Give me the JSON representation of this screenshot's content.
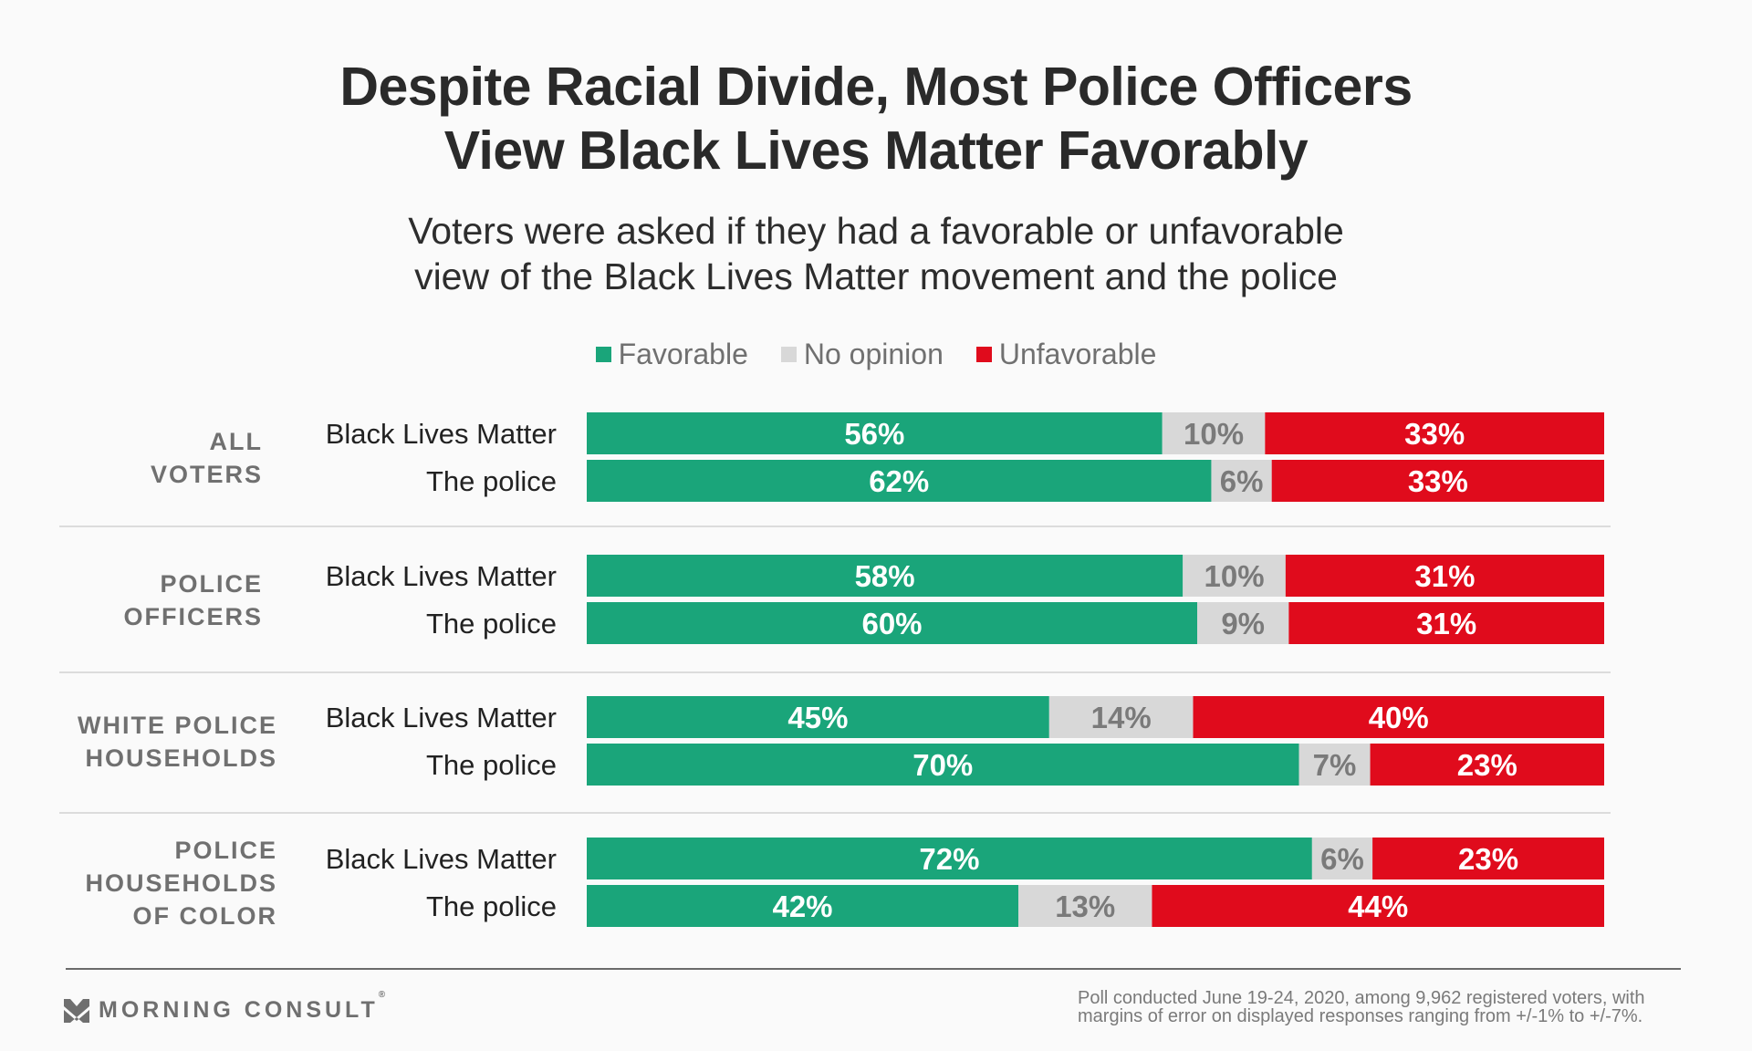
{
  "title_line1": "Despite Racial Divide, Most Police Officers",
  "title_line2": "View Black Lives Matter Favorably",
  "subtitle_line1": "Voters were asked if they had a favorable or unfavorable",
  "subtitle_line2": "view of the Black Lives Matter movement and the police",
  "legend": [
    {
      "label": "Favorable",
      "color": "#1aa57a"
    },
    {
      "label": "No opinion",
      "color": "#d8d8d8"
    },
    {
      "label": "Unfavorable",
      "color": "#e00b1c"
    }
  ],
  "chart_data": {
    "type": "bar",
    "orientation": "horizontal-stacked-100",
    "title": "Despite Racial Divide, Most Police Officers View Black Lives Matter Favorably",
    "subtitle": "Voters were asked if they had a favorable or unfavorable view of the Black Lives Matter movement and the police",
    "legend_position": "top-center",
    "series_names": [
      "Favorable",
      "No opinion",
      "Unfavorable"
    ],
    "series_colors": [
      "#1aa57a",
      "#d8d8d8",
      "#e00b1c"
    ],
    "label_colors": [
      "#ffffff",
      "#7a7a7a",
      "#ffffff"
    ],
    "groups": [
      {
        "label_lines": [
          "ALL",
          "VOTERS"
        ],
        "rows": [
          {
            "label": "Black Lives Matter",
            "values": [
              56,
              10,
              33
            ]
          },
          {
            "label": "The police",
            "values": [
              62,
              6,
              33
            ]
          }
        ]
      },
      {
        "label_lines": [
          "POLICE",
          "OFFICERS"
        ],
        "rows": [
          {
            "label": "Black Lives Matter",
            "values": [
              58,
              10,
              31
            ]
          },
          {
            "label": "The police",
            "values": [
              60,
              9,
              31
            ]
          }
        ]
      },
      {
        "label_lines": [
          "WHITE POLICE",
          "HOUSEHOLDS"
        ],
        "rows": [
          {
            "label": "Black Lives Matter",
            "values": [
              45,
              14,
              40
            ]
          },
          {
            "label": "The police",
            "values": [
              70,
              7,
              23
            ]
          }
        ]
      },
      {
        "label_lines": [
          "POLICE",
          "HOUSEHOLDS",
          "OF COLOR"
        ],
        "rows": [
          {
            "label": "Black Lives Matter",
            "values": [
              72,
              6,
              23
            ]
          },
          {
            "label": "The police",
            "values": [
              42,
              13,
              44
            ]
          }
        ]
      }
    ],
    "value_suffix": "%"
  },
  "footer": {
    "brand": "MORNING CONSULT",
    "registered": "®",
    "note_line1": "Poll conducted June 19-24, 2020, among 9,962 registered voters, with",
    "note_line2": "margins of error on displayed responses ranging from +/-1% to +/-7%."
  }
}
